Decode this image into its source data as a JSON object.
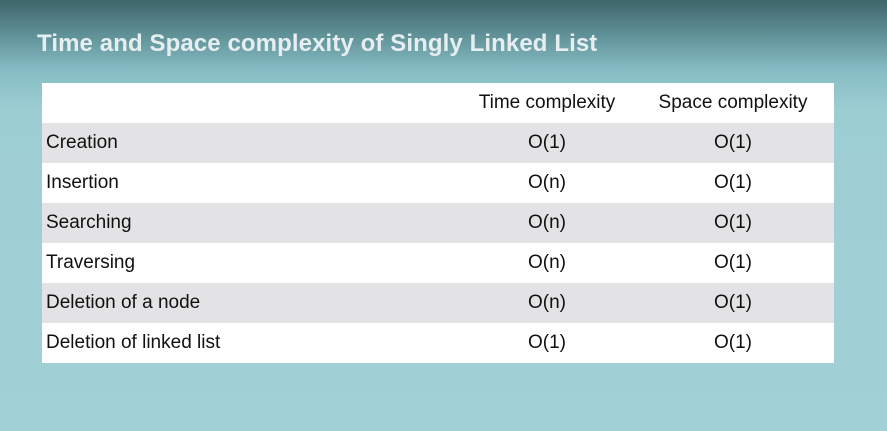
{
  "title": "Time and Space complexity of Singly Linked List",
  "table": {
    "headers": [
      "",
      "Time complexity",
      "Space complexity"
    ],
    "rows": [
      {
        "operation": "Creation",
        "time": "O(1)",
        "space": "O(1)"
      },
      {
        "operation": "Insertion",
        "time": "O(n)",
        "space": "O(1)"
      },
      {
        "operation": "Searching",
        "time": "O(n)",
        "space": "O(1)"
      },
      {
        "operation": "Traversing",
        "time": "O(n)",
        "space": "O(1)"
      },
      {
        "operation": "Deletion of a node",
        "time": "O(n)",
        "space": "O(1)"
      },
      {
        "operation": "Deletion of linked list",
        "time": "O(1)",
        "space": "O(1)"
      }
    ]
  },
  "colors": {
    "row_white": "#ffffff",
    "row_grey": "#e3e3e5",
    "title_text": "#e6eef0",
    "background": "#9fcfd5"
  }
}
